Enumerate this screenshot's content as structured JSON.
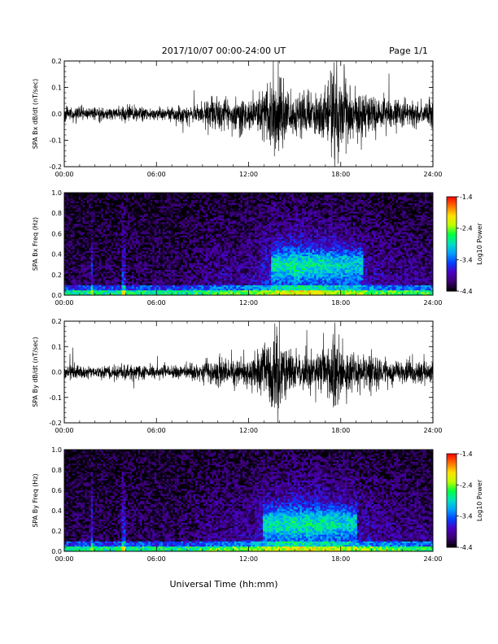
{
  "header": {
    "title": "2017/10/07  00:00-24:00 UT",
    "page": "Page 1/1"
  },
  "footer": {
    "xlabel": "Universal Time (hh:mm)"
  },
  "colors": {
    "trace": "#000000",
    "axes": "#000000",
    "colormap": [
      "#000000",
      "#3a0070",
      "#4a00c0",
      "#0040ff",
      "#00a0ff",
      "#00e0c0",
      "#00ff40",
      "#c0ff00",
      "#ffe000",
      "#ff7000",
      "#ff0000"
    ]
  },
  "chart_data": [
    {
      "type": "line",
      "ylabel": "SPA Bx dB/dt (nT/sec)",
      "x_ticks": [
        "00:00",
        "06:00",
        "12:00",
        "18:00",
        "24:00"
      ],
      "xlim": [
        0,
        24
      ],
      "ylim": [
        -0.2,
        0.2
      ],
      "y_ticks": [
        "-0.2",
        "-0.1",
        "0.0",
        "0.1",
        "0.2"
      ],
      "activity_profile_hours": [
        0,
        2,
        4,
        6,
        8,
        9,
        10,
        11,
        12,
        13,
        13.8,
        14.5,
        15,
        16,
        17,
        17.5,
        18,
        19,
        20,
        21,
        22,
        23,
        24
      ],
      "activity_profile_amp": [
        0.03,
        0.025,
        0.03,
        0.025,
        0.035,
        0.05,
        0.07,
        0.06,
        0.07,
        0.1,
        0.2,
        0.12,
        0.1,
        0.09,
        0.1,
        0.2,
        0.15,
        0.1,
        0.08,
        0.06,
        0.06,
        0.05,
        0.05
      ]
    },
    {
      "type": "heatmap",
      "ylabel": "SPA Bx Freq (Hz)",
      "x_ticks": [
        "00:00",
        "06:00",
        "12:00",
        "18:00",
        "24:00"
      ],
      "xlim": [
        0,
        24
      ],
      "ylim": [
        0,
        1.0
      ],
      "y_ticks": [
        "0.0",
        "0.2",
        "0.4",
        "0.6",
        "0.8",
        "1.0"
      ],
      "colorbar_label": "Log10 Power",
      "colorbar_ticks": [
        "-1.4",
        "-2.4",
        "-3.4",
        "-4.4"
      ],
      "color_range": [
        -4.4,
        -1.4
      ],
      "enhancement_band": {
        "start_hour": 13.5,
        "end_hour": 19.5,
        "freq_center": 0.3,
        "freq_width": 0.15
      }
    },
    {
      "type": "line",
      "ylabel": "SPA By dB/dt (nT/sec)",
      "x_ticks": [
        "00:00",
        "06:00",
        "12:00",
        "18:00",
        "24:00"
      ],
      "xlim": [
        0,
        24
      ],
      "ylim": [
        -0.2,
        0.2
      ],
      "y_ticks": [
        "-0.2",
        "-0.1",
        "0.0",
        "0.1",
        "0.2"
      ],
      "activity_profile_hours": [
        0,
        2,
        4,
        6,
        8,
        9,
        10,
        11,
        12,
        13,
        13.8,
        14.5,
        15,
        16,
        17,
        17.5,
        18,
        19,
        20,
        21,
        22,
        23,
        24
      ],
      "activity_profile_amp": [
        0.03,
        0.03,
        0.035,
        0.025,
        0.03,
        0.04,
        0.06,
        0.06,
        0.06,
        0.12,
        0.2,
        0.1,
        0.09,
        0.08,
        0.1,
        0.2,
        0.12,
        0.09,
        0.08,
        0.06,
        0.05,
        0.05,
        0.05
      ]
    },
    {
      "type": "heatmap",
      "ylabel": "SPA By Freq (Hz)",
      "x_ticks": [
        "00:00",
        "06:00",
        "12:00",
        "18:00",
        "24:00"
      ],
      "xlim": [
        0,
        24
      ],
      "ylim": [
        0,
        1.0
      ],
      "y_ticks": [
        "0.0",
        "0.2",
        "0.4",
        "0.6",
        "0.8",
        "1.0"
      ],
      "colorbar_label": "Log10 Power",
      "colorbar_ticks": [
        "-1.4",
        "-2.4",
        "-3.4",
        "-4.4"
      ],
      "color_range": [
        -4.4,
        -1.4
      ],
      "enhancement_band": {
        "start_hour": 13.0,
        "end_hour": 19.0,
        "freq_center": 0.28,
        "freq_width": 0.15
      }
    }
  ]
}
